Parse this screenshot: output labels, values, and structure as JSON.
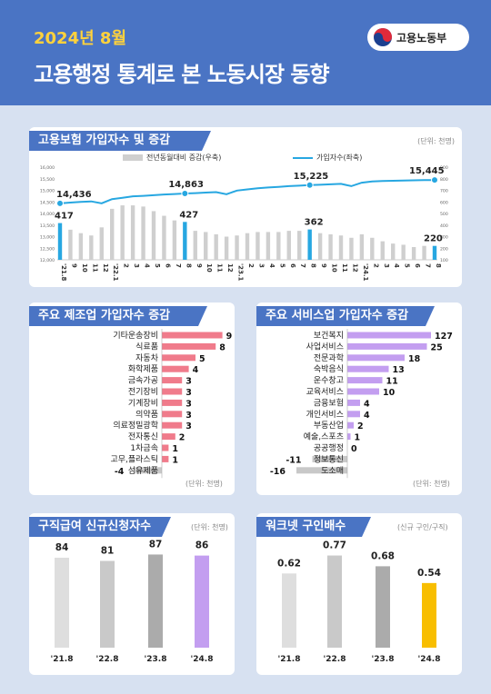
{
  "header": {
    "date": "2024년 8월",
    "title": "고용행정 통계로 본 노동시장 동향",
    "logo": "고용노동부"
  },
  "colors": {
    "blue": "#4a74c4",
    "accent_line": "#27a7e1",
    "pink": "#f07b8b",
    "purple": "#c39ef0",
    "gold": "#f8be00",
    "gray_bar": "#cfcfcf"
  },
  "panel1": {
    "title": "고용보험 가입자수 및 증감",
    "unit": "(단위: 천명)",
    "legend_bar": "전년동월대비 증감(우축)",
    "legend_line": "가입자수(좌축)"
  },
  "panel2": {
    "title": "주요 제조업 가입자수 증감",
    "unit": "(단위: 천명)"
  },
  "panel3": {
    "title": "주요 서비스업 가입자수 증감",
    "unit": "(단위: 천명)"
  },
  "panel4": {
    "title": "구직급여 신규신청자수",
    "unit": "(단위: 천명)"
  },
  "panel5": {
    "title": "워크넷 구인배수",
    "unit": "(신규 구인/구직)"
  },
  "chart_data": [
    {
      "type": "bar+line",
      "title": "고용보험 가입자수 및 증감",
      "categories": [
        "'21.8",
        "9",
        "10",
        "11",
        "12",
        "'22.1",
        "2",
        "3",
        "4",
        "5",
        "6",
        "7",
        "8",
        "9",
        "10",
        "11",
        "12",
        "'23.1",
        "2",
        "3",
        "4",
        "5",
        "6",
        "7",
        "8",
        "9",
        "10",
        "11",
        "12",
        "'24.1",
        "2",
        "3",
        "4",
        "5",
        "6",
        "7",
        "8"
      ],
      "highlight_indices": [
        0,
        12,
        24,
        36
      ],
      "series": [
        {
          "name": "가입자수(좌축)",
          "axis": "left",
          "values": [
            14436,
            14470,
            14500,
            14520,
            14440,
            14620,
            14680,
            14740,
            14760,
            14790,
            14820,
            14840,
            14863,
            14880,
            14900,
            14920,
            14830,
            14990,
            15040,
            15090,
            15120,
            15150,
            15180,
            15200,
            15225,
            15240,
            15260,
            15280,
            15180,
            15330,
            15380,
            15400,
            15410,
            15420,
            15430,
            15440,
            15445
          ]
        },
        {
          "name": "전년동월대비 증감(우축)",
          "axis": "right",
          "values": [
            417,
            360,
            330,
            310,
            380,
            540,
            570,
            570,
            560,
            520,
            480,
            440,
            427,
            350,
            340,
            320,
            300,
            310,
            330,
            340,
            340,
            340,
            350,
            350,
            362,
            330,
            320,
            310,
            290,
            320,
            290,
            260,
            240,
            230,
            210,
            220,
            220
          ]
        }
      ],
      "labels": {
        "line": [
          "14,436",
          "14,863",
          "15,225",
          "15,445"
        ],
        "bar": [
          "417",
          "427",
          "362",
          "220"
        ]
      },
      "left_axis": {
        "ticks": [
          "16,000",
          "15,500",
          "15,000",
          "14,500",
          "14,000",
          "13,500",
          "13,000",
          "12,500",
          "12,000"
        ],
        "range": [
          12000,
          16000
        ]
      },
      "right_axis": {
        "ticks": [
          "900",
          "800",
          "700",
          "600",
          "500",
          "400",
          "300",
          "200",
          "100"
        ],
        "range": [
          100,
          900
        ]
      }
    },
    {
      "type": "bar",
      "orientation": "horizontal",
      "title": "주요 제조업 가입자수 증감",
      "categories": [
        "기타운송장비",
        "식료품",
        "자동차",
        "화학제품",
        "금속가공",
        "전기장비",
        "기계장비",
        "의약품",
        "의료정밀광학",
        "전자통신",
        "1차금속",
        "고무,플라스틱",
        "섬유제품"
      ],
      "values": [
        9,
        8,
        5,
        4,
        3,
        3,
        3,
        3,
        3,
        2,
        1,
        1,
        -4
      ]
    },
    {
      "type": "bar",
      "orientation": "horizontal",
      "title": "주요 서비스업 가입자수 증감",
      "categories": [
        "보건복지",
        "사업서비스",
        "전문과학",
        "숙박음식",
        "운수창고",
        "교육서비스",
        "금융보험",
        "개인서비스",
        "부동산업",
        "예술,스포츠",
        "공공행정",
        "정보통신",
        "도소매"
      ],
      "values": [
        127,
        25,
        18,
        13,
        11,
        10,
        4,
        4,
        2,
        1,
        0,
        -11,
        -16
      ]
    },
    {
      "type": "bar",
      "title": "구직급여 신규신청자수",
      "categories": [
        "'21.8",
        "'22.8",
        "'23.8",
        "'24.8"
      ],
      "values": [
        84,
        81,
        87,
        86
      ]
    },
    {
      "type": "bar",
      "title": "워크넷 구인배수",
      "categories": [
        "'21.8",
        "'22.8",
        "'23.8",
        "'24.8"
      ],
      "values": [
        0.62,
        0.77,
        0.68,
        0.54
      ]
    }
  ]
}
